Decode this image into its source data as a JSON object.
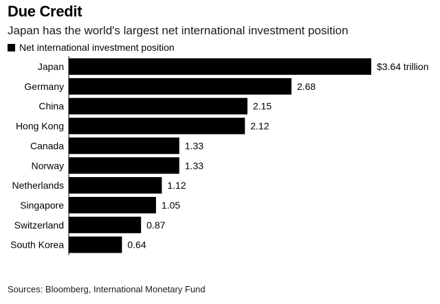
{
  "header": {
    "title": "Due Credit",
    "subtitle": "Japan has the world's largest net international investment position"
  },
  "footer": {
    "source": "Sources: Bloomberg, International Monetary Fund"
  },
  "colors": {
    "bar": "#000000",
    "axis": "#000000"
  },
  "chart_data": {
    "type": "bar",
    "orientation": "horizontal",
    "title": "Due Credit",
    "subtitle": "Japan has the world's largest net international investment position",
    "categories": [
      "Japan",
      "Germany",
      "China",
      "Hong Kong",
      "Canada",
      "Norway",
      "Netherlands",
      "Singapore",
      "Switzerland",
      "South Korea"
    ],
    "series": [
      {
        "name": "Net international investment position",
        "values": [
          3.64,
          2.68,
          2.15,
          2.12,
          1.33,
          1.33,
          1.12,
          1.05,
          0.87,
          0.64
        ]
      }
    ],
    "value_labels": [
      "$3.64 trillion",
      "2.68",
      "2.15",
      "2.12",
      "1.33",
      "1.33",
      "1.12",
      "1.05",
      "0.87",
      "0.64"
    ],
    "xlim": [
      0,
      3.64
    ],
    "grid": false,
    "legend": "top-left",
    "source": "Sources: Bloomberg, International Monetary Fund"
  }
}
